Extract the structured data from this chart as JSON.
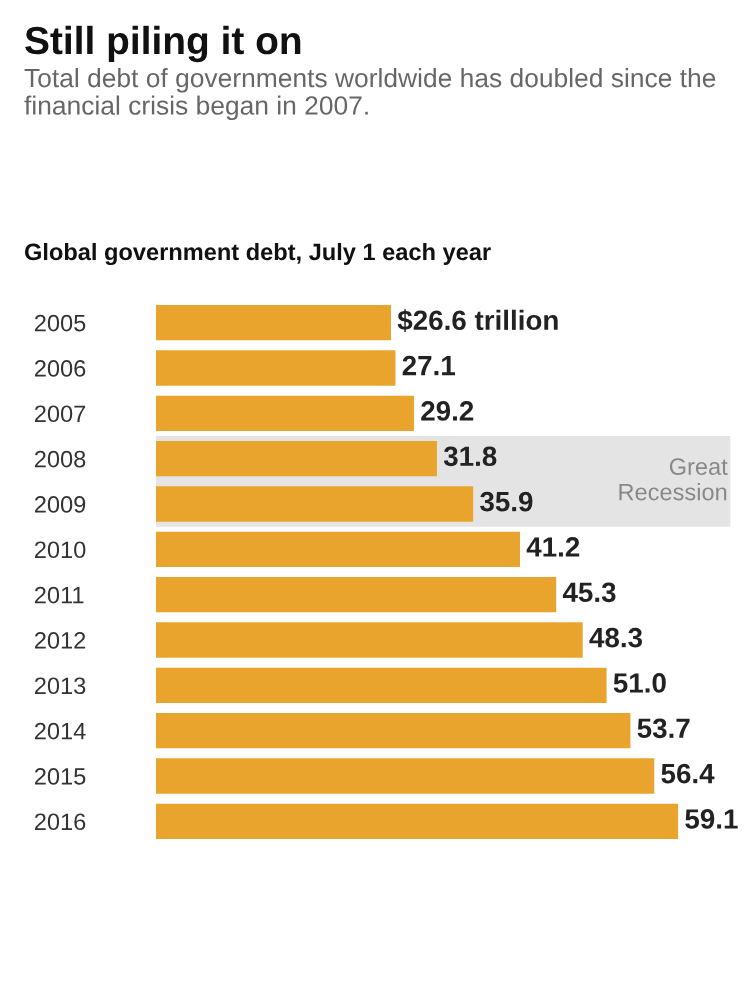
{
  "chart_data": {
    "type": "bar",
    "orientation": "horizontal",
    "title": "Still piling it on",
    "subtitle": "Total debt of governments worldwide has doubled since the financial crisis began in 2007.",
    "ylabel": "Global government debt, July 1 each year",
    "categories": [
      "2005",
      "2006",
      "2007",
      "2008",
      "2009",
      "2010",
      "2011",
      "2012",
      "2013",
      "2014",
      "2015",
      "2016"
    ],
    "values": [
      26.6,
      27.1,
      29.2,
      31.8,
      35.9,
      41.2,
      45.3,
      48.3,
      51.0,
      53.7,
      56.4,
      59.1
    ],
    "value_labels": [
      "$26.6 trillion",
      "27.1",
      "29.2",
      "31.8",
      "35.9",
      "41.2",
      "45.3",
      "48.3",
      "51.0",
      "53.7",
      "56.4",
      "59.1"
    ],
    "color": "#e8a42c",
    "bands": [
      {
        "axis": "y",
        "from": "2008",
        "to": "2009",
        "label": "Great Recession",
        "color": "#e4e4e4"
      }
    ],
    "grid": false
  }
}
